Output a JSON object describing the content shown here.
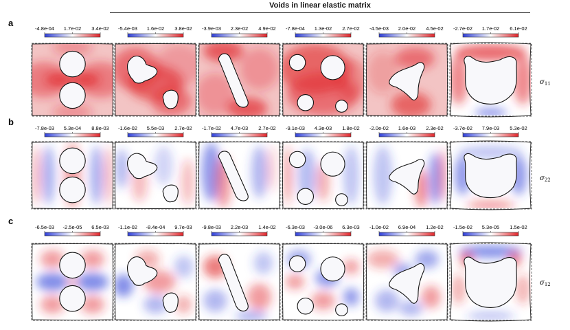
{
  "figure": {
    "title": "Voids in linear elastic matrix",
    "colormap": {
      "negative": "#2f3fd8",
      "zero": "#ffffff",
      "positive": "#e0242a"
    },
    "rows": [
      {
        "letter": "a",
        "label_symbol": "σ",
        "label_sub": "11",
        "colorbars": [
          [
            "-4.8e-04",
            "1.7e-02",
            "3.4e-02"
          ],
          [
            "-5.4e-03",
            "1.6e-02",
            "3.8e-02"
          ],
          [
            "-3.9e-03",
            "2.3e-02",
            "4.9e-02"
          ],
          [
            "-7.8e-04",
            "1.3e-02",
            "2.7e-02"
          ],
          [
            "-4.5e-03",
            "2.0e-02",
            "4.5e-02"
          ],
          [
            "-2.7e-02",
            "1.7e-02",
            "6.1e-02"
          ]
        ]
      },
      {
        "letter": "b",
        "label_symbol": "σ",
        "label_sub": "22",
        "colorbars": [
          [
            "-7.8e-03",
            "5.3e-04",
            "8.8e-03"
          ],
          [
            "-1.6e-02",
            "5.5e-03",
            "2.7e-02"
          ],
          [
            "-1.7e-02",
            "4.7e-03",
            "2.7e-02"
          ],
          [
            "-9.1e-03",
            "4.3e-03",
            "1.8e-02"
          ],
          [
            "-2.0e-02",
            "1.6e-03",
            "2.3e-02"
          ],
          [
            "-3.7e-02",
            "7.9e-03",
            "5.3e-02"
          ]
        ]
      },
      {
        "letter": "c",
        "label_symbol": "σ",
        "label_sub": "12",
        "colorbars": [
          [
            "-6.5e-03",
            "-2.5e-05",
            "6.5e-03"
          ],
          [
            "-1.1e-02",
            "-8.4e-04",
            "9.7e-03"
          ],
          [
            "-9.8e-03",
            "2.2e-03",
            "1.4e-02"
          ],
          [
            "-6.3e-03",
            "-3.0e-06",
            "6.3e-03"
          ],
          [
            "-1.0e-02",
            "6.9e-04",
            "1.2e-02"
          ],
          [
            "-1.5e-02",
            "5.3e-05",
            "1.5e-02"
          ]
        ]
      }
    ]
  }
}
